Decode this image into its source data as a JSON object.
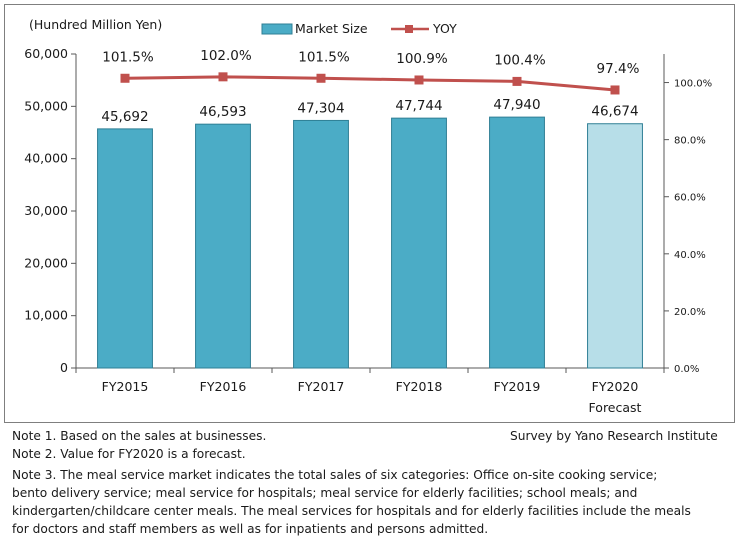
{
  "chart_data": {
    "type": "bar",
    "categories": [
      "FY2015",
      "FY2016",
      "FY2017",
      "FY2018",
      "FY2019",
      "FY2020"
    ],
    "category_sublabels": [
      "",
      "",
      "",
      "",
      "",
      "Forecast"
    ],
    "series": [
      {
        "name": "Market Size",
        "type": "bar",
        "values": [
          45692,
          46593,
          47304,
          47744,
          47940,
          46674
        ],
        "labels": [
          "45,692",
          "46,593",
          "47,304",
          "47,744",
          "47,940",
          "46,674"
        ],
        "forecast": [
          false,
          false,
          false,
          false,
          false,
          true
        ]
      },
      {
        "name": "YOY",
        "type": "line",
        "axis": "right",
        "values": [
          101.5,
          102.0,
          101.5,
          100.9,
          100.4,
          97.4
        ],
        "labels": [
          "101.5%",
          "102.0%",
          "101.5%",
          "100.9%",
          "100.4%",
          "97.4%"
        ]
      }
    ],
    "ylabel": "(Hundred Million Yen)",
    "ylim": [
      0,
      60000
    ],
    "yticks": [
      0,
      10000,
      20000,
      30000,
      40000,
      50000,
      60000
    ],
    "ytick_labels": [
      "0",
      "10,000",
      "20,000",
      "30,000",
      "40,000",
      "50,000",
      "60,000"
    ],
    "y2lim": [
      0,
      110
    ],
    "y2ticks": [
      0,
      20,
      40,
      60,
      80,
      100
    ],
    "y2tick_labels": [
      "0.0%",
      "20.0%",
      "40.0%",
      "60.0%",
      "80.0%",
      "100.0%"
    ],
    "legend": [
      "Market Size",
      "YOY"
    ],
    "legend_position": "top-center",
    "grid": false
  },
  "colors": {
    "bar": "#4bacc6",
    "bar_forecast": "#b7dee8",
    "bar_stroke": "#2f7f95",
    "line": "#c0504d",
    "axis": "#595959"
  },
  "notes": {
    "note1": "Note 1.  Based on the sales at businesses.",
    "source": "Survey by Yano Research Institute",
    "note2": "Note 2.  Value for FY2020 is a forecast.",
    "note3_line1": "Note 3.  The meal service market  indicates the total sales of six categories: Office on-site cooking service;",
    "note3_line2": "bento delivery service; meal service for hospitals; meal service for elderly facilities; school meals; and",
    "note3_line3": "kindergarten/childcare center meals. The meal services for hospitals and for elderly facilities include the meals",
    "note3_line4": "for doctors and staff members as well as for inpatients and persons admitted."
  }
}
